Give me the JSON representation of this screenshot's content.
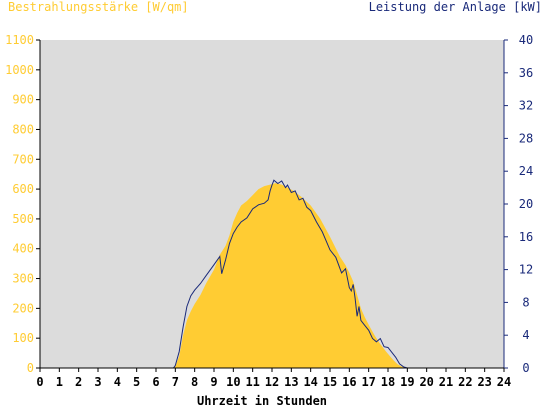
{
  "colors": {
    "irradiance": "#ffcc33",
    "power": "#1a2a7a",
    "plot_bg": "#dcdcdc",
    "axis": "#000000",
    "left_axis_text": "#ffcc33",
    "right_axis_text": "#1a2a7a"
  },
  "chart_data": {
    "type": "area",
    "left_axis_title": "Bestrahlungsstärke [W/qm]",
    "right_axis_title": "Leistung der Anlage [kW]",
    "xlabel": "Uhrzeit in Stunden",
    "xlim": [
      0,
      24
    ],
    "ylim_left": [
      0,
      1100
    ],
    "ylim_right": [
      0,
      40
    ],
    "x_ticks": [
      "0",
      "1",
      "2",
      "3",
      "4",
      "5",
      "6",
      "7",
      "8",
      "9",
      "10",
      "11",
      "12",
      "13",
      "14",
      "15",
      "16",
      "17",
      "18",
      "19",
      "20",
      "21",
      "22",
      "23",
      "24"
    ],
    "y_left_ticks": [
      "0",
      "100",
      "200",
      "300",
      "400",
      "500",
      "600",
      "700",
      "800",
      "900",
      "1000",
      "1100"
    ],
    "y_right_ticks": [
      "0",
      "4",
      "8",
      "12",
      "16",
      "20",
      "24",
      "28",
      "32",
      "36",
      "40"
    ],
    "series": [
      {
        "name": "Bestrahlungsstärke [W/qm]",
        "axis": "left",
        "style": "filled-area",
        "x": [
          0,
          6.9,
          7.0,
          7.2,
          7.4,
          7.6,
          7.8,
          8.0,
          8.3,
          8.6,
          9.0,
          9.3,
          9.6,
          9.8,
          10.0,
          10.2,
          10.4,
          10.7,
          11.0,
          11.3,
          11.6,
          11.9,
          12.2,
          12.5,
          12.8,
          13.1,
          13.5,
          14.0,
          14.5,
          15.0,
          15.5,
          15.8,
          16.0,
          16.2,
          16.4,
          16.6,
          16.8,
          17.0,
          17.3,
          17.6,
          17.9,
          18.1,
          18.3,
          18.5,
          18.7,
          18.9,
          19.0,
          24
        ],
        "values": [
          0,
          0,
          5,
          40,
          110,
          160,
          190,
          215,
          245,
          285,
          330,
          380,
          410,
          445,
          490,
          520,
          545,
          560,
          580,
          600,
          610,
          615,
          620,
          615,
          605,
          595,
          575,
          545,
          500,
          440,
          375,
          345,
          320,
          290,
          245,
          200,
          170,
          145,
          110,
          80,
          55,
          40,
          25,
          12,
          5,
          1,
          0,
          0
        ]
      },
      {
        "name": "Leistung der Anlage [kW]",
        "axis": "right",
        "style": "line",
        "x": [
          0,
          6.9,
          7.0,
          7.2,
          7.4,
          7.6,
          7.8,
          8.0,
          8.3,
          8.6,
          9.0,
          9.3,
          9.4,
          9.6,
          9.8,
          10.0,
          10.2,
          10.4,
          10.7,
          11.0,
          11.3,
          11.6,
          11.8,
          11.9,
          12.0,
          12.1,
          12.3,
          12.5,
          12.7,
          12.8,
          13.0,
          13.2,
          13.4,
          13.6,
          13.8,
          14.0,
          14.3,
          14.6,
          15.0,
          15.3,
          15.6,
          15.8,
          16.0,
          16.1,
          16.2,
          16.3,
          16.4,
          16.5,
          16.6,
          16.8,
          17.0,
          17.2,
          17.4,
          17.6,
          17.8,
          18.0,
          18.2,
          18.4,
          18.6,
          18.8,
          19.0,
          24
        ],
        "values": [
          0,
          0,
          0.3,
          2.0,
          5.0,
          7.5,
          8.8,
          9.5,
          10.3,
          11.3,
          12.6,
          13.6,
          11.5,
          13.2,
          15.2,
          16.4,
          17.2,
          17.8,
          18.3,
          19.4,
          19.9,
          20.1,
          20.5,
          21.6,
          22.3,
          22.9,
          22.5,
          22.8,
          22.0,
          22.3,
          21.4,
          21.6,
          20.5,
          20.7,
          19.6,
          19.2,
          17.8,
          16.6,
          14.4,
          13.5,
          11.6,
          12.1,
          9.8,
          9.4,
          10.2,
          8.5,
          6.3,
          7.5,
          5.8,
          5.2,
          4.6,
          3.6,
          3.2,
          3.6,
          2.6,
          2.5,
          1.9,
          1.3,
          0.5,
          0.15,
          0,
          0
        ]
      }
    ]
  }
}
